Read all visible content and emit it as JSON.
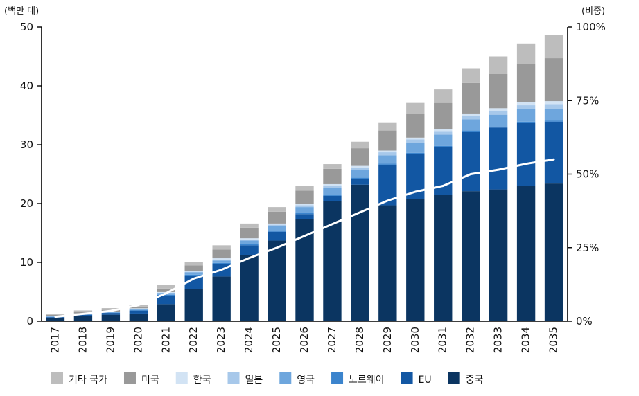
{
  "chart_data": {
    "type": "bar",
    "stacked": true,
    "categories": [
      "2017",
      "2018",
      "2019",
      "2020",
      "2021",
      "2022",
      "2023",
      "2024",
      "2025",
      "2026",
      "2027",
      "2028",
      "2029",
      "2030",
      "2031",
      "2032",
      "2033",
      "2034",
      "2035"
    ],
    "left_axis": {
      "unit": "(백만 대)",
      "ylim": [
        0,
        50
      ],
      "ticks": [
        "0",
        "10",
        "20",
        "30",
        "40",
        "50"
      ]
    },
    "right_axis": {
      "unit": "(비중)",
      "ylim": [
        0,
        100
      ],
      "ticks": [
        "0%",
        "25%",
        "50%",
        "75%",
        "100%"
      ]
    },
    "series": [
      {
        "name": "중국",
        "color": "#0b3561",
        "values": [
          0.6,
          0.9,
          1.1,
          1.3,
          2.9,
          5.5,
          7.6,
          11.2,
          13.7,
          17.3,
          20.4,
          23.2,
          19.7,
          20.8,
          21.5,
          22.1,
          22.4,
          23.0,
          23.4
        ]
      },
      {
        "name": "EU",
        "color": "#1257a3",
        "values": [
          0.1,
          0.2,
          0.3,
          0.5,
          1.4,
          2.2,
          2.1,
          1.7,
          1.5,
          0.9,
          0.9,
          1.0,
          6.9,
          7.6,
          8.1,
          10.1,
          10.5,
          10.7,
          10.5
        ]
      },
      {
        "name": "노르웨이",
        "color": "#3b84cd",
        "values": [
          0.05,
          0.05,
          0.05,
          0.1,
          0.2,
          0.2,
          0.2,
          0.2,
          0.2,
          0.2,
          0.2,
          0.2,
          0.2,
          0.2,
          0.2,
          0.2,
          0.2,
          0.2,
          0.2
        ]
      },
      {
        "name": "영국",
        "color": "#6ea6dd",
        "values": [
          0.05,
          0.1,
          0.1,
          0.2,
          0.3,
          0.4,
          0.4,
          0.6,
          0.8,
          1.0,
          1.1,
          1.3,
          1.4,
          1.7,
          1.9,
          1.9,
          2.0,
          2.1,
          2.0
        ]
      },
      {
        "name": "일본",
        "color": "#a7c8ea",
        "values": [
          0.05,
          0.05,
          0.05,
          0.05,
          0.05,
          0.1,
          0.2,
          0.2,
          0.2,
          0.3,
          0.4,
          0.4,
          0.5,
          0.6,
          0.6,
          0.6,
          0.7,
          0.7,
          0.8
        ]
      },
      {
        "name": "한국",
        "color": "#d2e3f4",
        "values": [
          0.02,
          0.03,
          0.03,
          0.05,
          0.1,
          0.1,
          0.2,
          0.2,
          0.2,
          0.2,
          0.3,
          0.3,
          0.3,
          0.3,
          0.3,
          0.4,
          0.4,
          0.5,
          0.5
        ]
      },
      {
        "name": "미국",
        "color": "#999999",
        "values": [
          0.2,
          0.3,
          0.3,
          0.3,
          0.6,
          1.0,
          1.5,
          1.8,
          2.0,
          2.3,
          2.6,
          3.0,
          3.4,
          4.0,
          4.5,
          5.2,
          5.8,
          6.5,
          7.3
        ]
      },
      {
        "name": "기타  국가",
        "color": "#bdbdbd",
        "values": [
          0.1,
          0.2,
          0.3,
          0.3,
          0.6,
          0.6,
          0.7,
          0.7,
          0.8,
          0.8,
          0.8,
          1.1,
          1.4,
          1.9,
          2.3,
          2.5,
          3.0,
          3.5,
          4.0
        ]
      }
    ],
    "line": {
      "name": "비중",
      "axis": "right",
      "color": "#ffffff",
      "values": [
        1.5,
        2.5,
        3.5,
        5.5,
        9.5,
        14.5,
        17.5,
        21.5,
        25,
        29,
        33,
        37,
        41,
        44,
        46,
        50,
        51.5,
        53.5,
        55
      ]
    },
    "legend": {
      "placement": "bottom",
      "order": [
        "기타  국가",
        "미국",
        "한국",
        "일본",
        "영국",
        "노르웨이",
        "EU",
        "중국"
      ]
    }
  }
}
